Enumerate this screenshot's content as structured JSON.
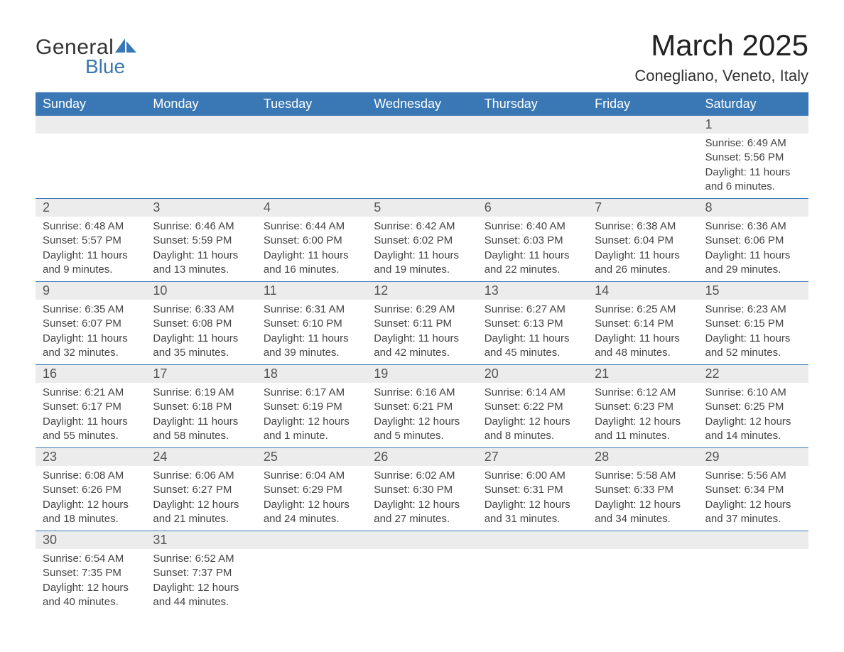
{
  "logo": {
    "text1": "General",
    "text2": "Blue",
    "sail_color": "#3a78b5"
  },
  "title": "March 2025",
  "location": "Conegliano, Veneto, Italy",
  "colors": {
    "header_bg": "#3a78b5",
    "header_text": "#ffffff",
    "daynum_bg": "#ececec",
    "border": "#3a78b5",
    "text": "#444444",
    "bg": "#ffffff"
  },
  "day_headers": [
    "Sunday",
    "Monday",
    "Tuesday",
    "Wednesday",
    "Thursday",
    "Friday",
    "Saturday"
  ],
  "weeks": [
    [
      null,
      null,
      null,
      null,
      null,
      null,
      {
        "n": "1",
        "sunrise": "6:49 AM",
        "sunset": "5:56 PM",
        "daylight": "11 hours and 6 minutes."
      }
    ],
    [
      {
        "n": "2",
        "sunrise": "6:48 AM",
        "sunset": "5:57 PM",
        "daylight": "11 hours and 9 minutes."
      },
      {
        "n": "3",
        "sunrise": "6:46 AM",
        "sunset": "5:59 PM",
        "daylight": "11 hours and 13 minutes."
      },
      {
        "n": "4",
        "sunrise": "6:44 AM",
        "sunset": "6:00 PM",
        "daylight": "11 hours and 16 minutes."
      },
      {
        "n": "5",
        "sunrise": "6:42 AM",
        "sunset": "6:02 PM",
        "daylight": "11 hours and 19 minutes."
      },
      {
        "n": "6",
        "sunrise": "6:40 AM",
        "sunset": "6:03 PM",
        "daylight": "11 hours and 22 minutes."
      },
      {
        "n": "7",
        "sunrise": "6:38 AM",
        "sunset": "6:04 PM",
        "daylight": "11 hours and 26 minutes."
      },
      {
        "n": "8",
        "sunrise": "6:36 AM",
        "sunset": "6:06 PM",
        "daylight": "11 hours and 29 minutes."
      }
    ],
    [
      {
        "n": "9",
        "sunrise": "6:35 AM",
        "sunset": "6:07 PM",
        "daylight": "11 hours and 32 minutes."
      },
      {
        "n": "10",
        "sunrise": "6:33 AM",
        "sunset": "6:08 PM",
        "daylight": "11 hours and 35 minutes."
      },
      {
        "n": "11",
        "sunrise": "6:31 AM",
        "sunset": "6:10 PM",
        "daylight": "11 hours and 39 minutes."
      },
      {
        "n": "12",
        "sunrise": "6:29 AM",
        "sunset": "6:11 PM",
        "daylight": "11 hours and 42 minutes."
      },
      {
        "n": "13",
        "sunrise": "6:27 AM",
        "sunset": "6:13 PM",
        "daylight": "11 hours and 45 minutes."
      },
      {
        "n": "14",
        "sunrise": "6:25 AM",
        "sunset": "6:14 PM",
        "daylight": "11 hours and 48 minutes."
      },
      {
        "n": "15",
        "sunrise": "6:23 AM",
        "sunset": "6:15 PM",
        "daylight": "11 hours and 52 minutes."
      }
    ],
    [
      {
        "n": "16",
        "sunrise": "6:21 AM",
        "sunset": "6:17 PM",
        "daylight": "11 hours and 55 minutes."
      },
      {
        "n": "17",
        "sunrise": "6:19 AM",
        "sunset": "6:18 PM",
        "daylight": "11 hours and 58 minutes."
      },
      {
        "n": "18",
        "sunrise": "6:17 AM",
        "sunset": "6:19 PM",
        "daylight": "12 hours and 1 minute."
      },
      {
        "n": "19",
        "sunrise": "6:16 AM",
        "sunset": "6:21 PM",
        "daylight": "12 hours and 5 minutes."
      },
      {
        "n": "20",
        "sunrise": "6:14 AM",
        "sunset": "6:22 PM",
        "daylight": "12 hours and 8 minutes."
      },
      {
        "n": "21",
        "sunrise": "6:12 AM",
        "sunset": "6:23 PM",
        "daylight": "12 hours and 11 minutes."
      },
      {
        "n": "22",
        "sunrise": "6:10 AM",
        "sunset": "6:25 PM",
        "daylight": "12 hours and 14 minutes."
      }
    ],
    [
      {
        "n": "23",
        "sunrise": "6:08 AM",
        "sunset": "6:26 PM",
        "daylight": "12 hours and 18 minutes."
      },
      {
        "n": "24",
        "sunrise": "6:06 AM",
        "sunset": "6:27 PM",
        "daylight": "12 hours and 21 minutes."
      },
      {
        "n": "25",
        "sunrise": "6:04 AM",
        "sunset": "6:29 PM",
        "daylight": "12 hours and 24 minutes."
      },
      {
        "n": "26",
        "sunrise": "6:02 AM",
        "sunset": "6:30 PM",
        "daylight": "12 hours and 27 minutes."
      },
      {
        "n": "27",
        "sunrise": "6:00 AM",
        "sunset": "6:31 PM",
        "daylight": "12 hours and 31 minutes."
      },
      {
        "n": "28",
        "sunrise": "5:58 AM",
        "sunset": "6:33 PM",
        "daylight": "12 hours and 34 minutes."
      },
      {
        "n": "29",
        "sunrise": "5:56 AM",
        "sunset": "6:34 PM",
        "daylight": "12 hours and 37 minutes."
      }
    ],
    [
      {
        "n": "30",
        "sunrise": "6:54 AM",
        "sunset": "7:35 PM",
        "daylight": "12 hours and 40 minutes."
      },
      {
        "n": "31",
        "sunrise": "6:52 AM",
        "sunset": "7:37 PM",
        "daylight": "12 hours and 44 minutes."
      },
      null,
      null,
      null,
      null,
      null
    ]
  ],
  "labels": {
    "sunrise": "Sunrise:",
    "sunset": "Sunset:",
    "daylight": "Daylight:"
  }
}
